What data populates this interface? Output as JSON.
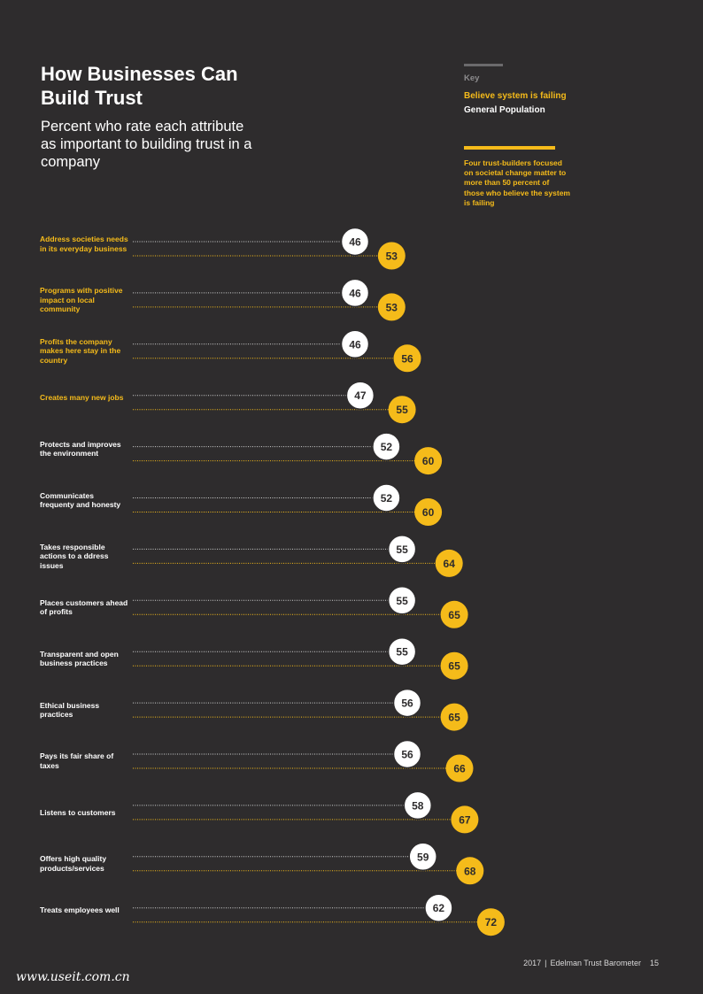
{
  "header": {
    "title": "How Businesses Can Build Trust",
    "subtitle": "Percent who rate each attribute as important to building trust in a company"
  },
  "key": {
    "heading": "Key",
    "believe_failing": "Believe system is failing",
    "general_population": "General Population"
  },
  "note": "Four trust-builders focused on societal change matter to more than 50 percent of those who believe the system is failing",
  "footer": {
    "year": "2017",
    "separator": "|",
    "publication": "Edelman Trust Barometer",
    "page": "15"
  },
  "watermark": "www.useit.com.cn",
  "colors": {
    "background": "#2e2c2d",
    "gold": "#f5bb1a",
    "white": "#ffffff"
  },
  "chart_data": {
    "type": "dot",
    "series": [
      {
        "name": "General Population",
        "color": "#ffffff",
        "values": [
          46,
          46,
          46,
          47,
          52,
          52,
          55,
          55,
          55,
          56,
          56,
          58,
          59,
          62
        ]
      },
      {
        "name": "Believe system is failing",
        "color": "#f5bb1a",
        "values": [
          53,
          53,
          56,
          55,
          60,
          60,
          64,
          65,
          65,
          65,
          66,
          67,
          68,
          72
        ]
      }
    ],
    "categories": [
      "Address societies needs in its everyday business",
      "Programs with positive impact on local community",
      "Profits the company makes here stay in the country",
      "Creates many new jobs",
      "Protects and improves the environment",
      "Communicates frequenty and honesty",
      "Takes responsible actions to a ddress issues",
      "Places customers ahead of profits",
      "Transparent and open business practices",
      "Ethical business practices",
      "Pays its fair share of taxes",
      "Listens to customers",
      "Offers high quality products/services",
      "Treats employees well"
    ],
    "highlighted": [
      true,
      true,
      true,
      true,
      false,
      false,
      false,
      false,
      false,
      false,
      false,
      false,
      false,
      false
    ]
  }
}
